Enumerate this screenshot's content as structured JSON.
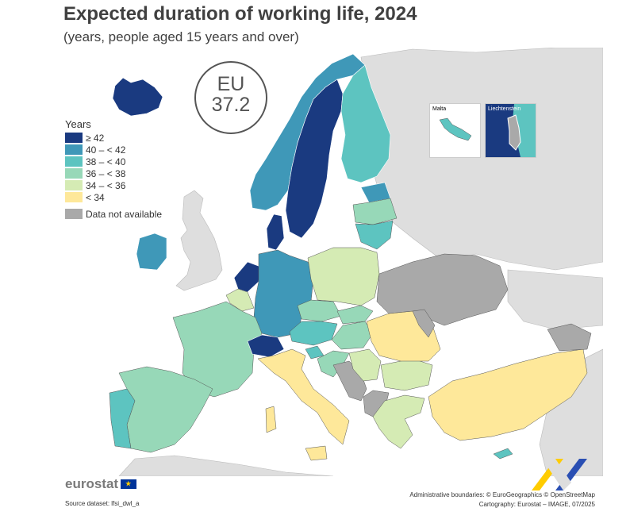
{
  "title": "Expected duration of working life, 2024",
  "subtitle": "(years, people aged 15 years and over)",
  "eu_badge": {
    "label": "EU",
    "value": "37.2"
  },
  "legend": {
    "title": "Years",
    "classes": [
      {
        "label": "≥ 42",
        "color": "#1a3a80"
      },
      {
        "label": "40 – < 42",
        "color": "#3f98b8"
      },
      {
        "label": "38 – < 40",
        "color": "#5dc4c0"
      },
      {
        "label": "36 – < 38",
        "color": "#97d8b8"
      },
      {
        "label": "34 – < 36",
        "color": "#d5ebb4"
      },
      {
        "label": "< 34",
        "color": "#fee89a"
      }
    ],
    "na": {
      "label": "Data not available",
      "color": "#a9a9a9"
    }
  },
  "insets": {
    "malta": "Malta",
    "liechtenstein": "Liechtenstein"
  },
  "colors": {
    "non_eu": "#dedede",
    "sea": "#ffffff",
    "border": "#555555"
  },
  "footer": {
    "logo": "eurostat",
    "source": "Source dataset: lfsi_dwl_a",
    "credit1": "Administrative boundaries: © EuroGeographics © OpenStreetMap",
    "credit2": "Cartography: Eurostat – IMAGE, 07/2025"
  }
}
